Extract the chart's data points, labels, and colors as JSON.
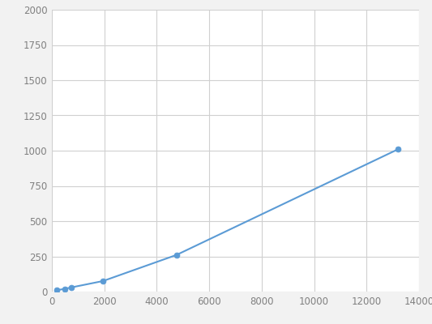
{
  "x": [
    200,
    500,
    750,
    1950,
    4750,
    13200
  ],
  "y": [
    10,
    20,
    30,
    75,
    260,
    1010
  ],
  "line_color": "#5b9bd5",
  "marker_color": "#5b9bd5",
  "marker_size": 5,
  "xlim": [
    0,
    14000
  ],
  "ylim": [
    0,
    2000
  ],
  "xticks": [
    0,
    2000,
    4000,
    6000,
    8000,
    10000,
    12000,
    14000
  ],
  "yticks": [
    0,
    250,
    500,
    750,
    1000,
    1250,
    1500,
    1750,
    2000
  ],
  "grid_color": "#d0d0d0",
  "background_color": "#f2f2f2",
  "plot_bg_color": "#ffffff",
  "tick_label_color": "#808080",
  "tick_fontsize": 8.5
}
